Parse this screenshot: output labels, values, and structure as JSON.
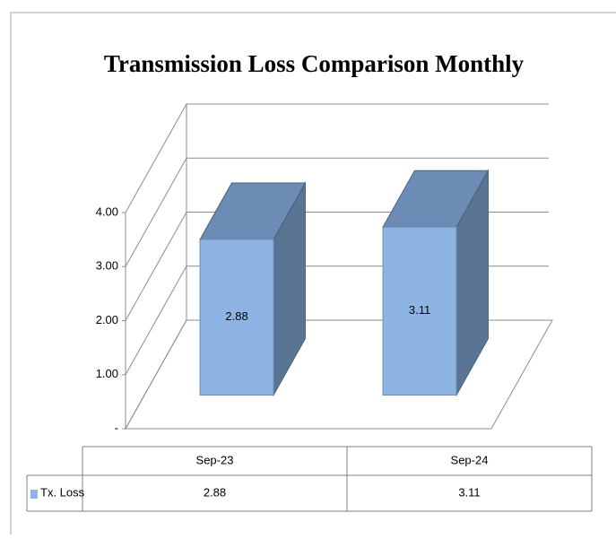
{
  "chart_data": {
    "type": "bar",
    "title": "Transmission Loss Comparison Monthly",
    "categories": [
      "Sep-23",
      "Sep-24"
    ],
    "series": [
      {
        "name": "Tx. Loss",
        "color": "#8db4e2",
        "values": [
          2.88,
          3.11
        ]
      }
    ],
    "ylim": [
      0,
      4
    ],
    "yticks": [
      {
        "value": 0,
        "label": "-"
      },
      {
        "value": 1,
        "label": "1.00"
      },
      {
        "value": 2,
        "label": "2.00"
      },
      {
        "value": 3,
        "label": "3.00"
      },
      {
        "value": 4,
        "label": "4.00"
      }
    ],
    "grid": true
  }
}
